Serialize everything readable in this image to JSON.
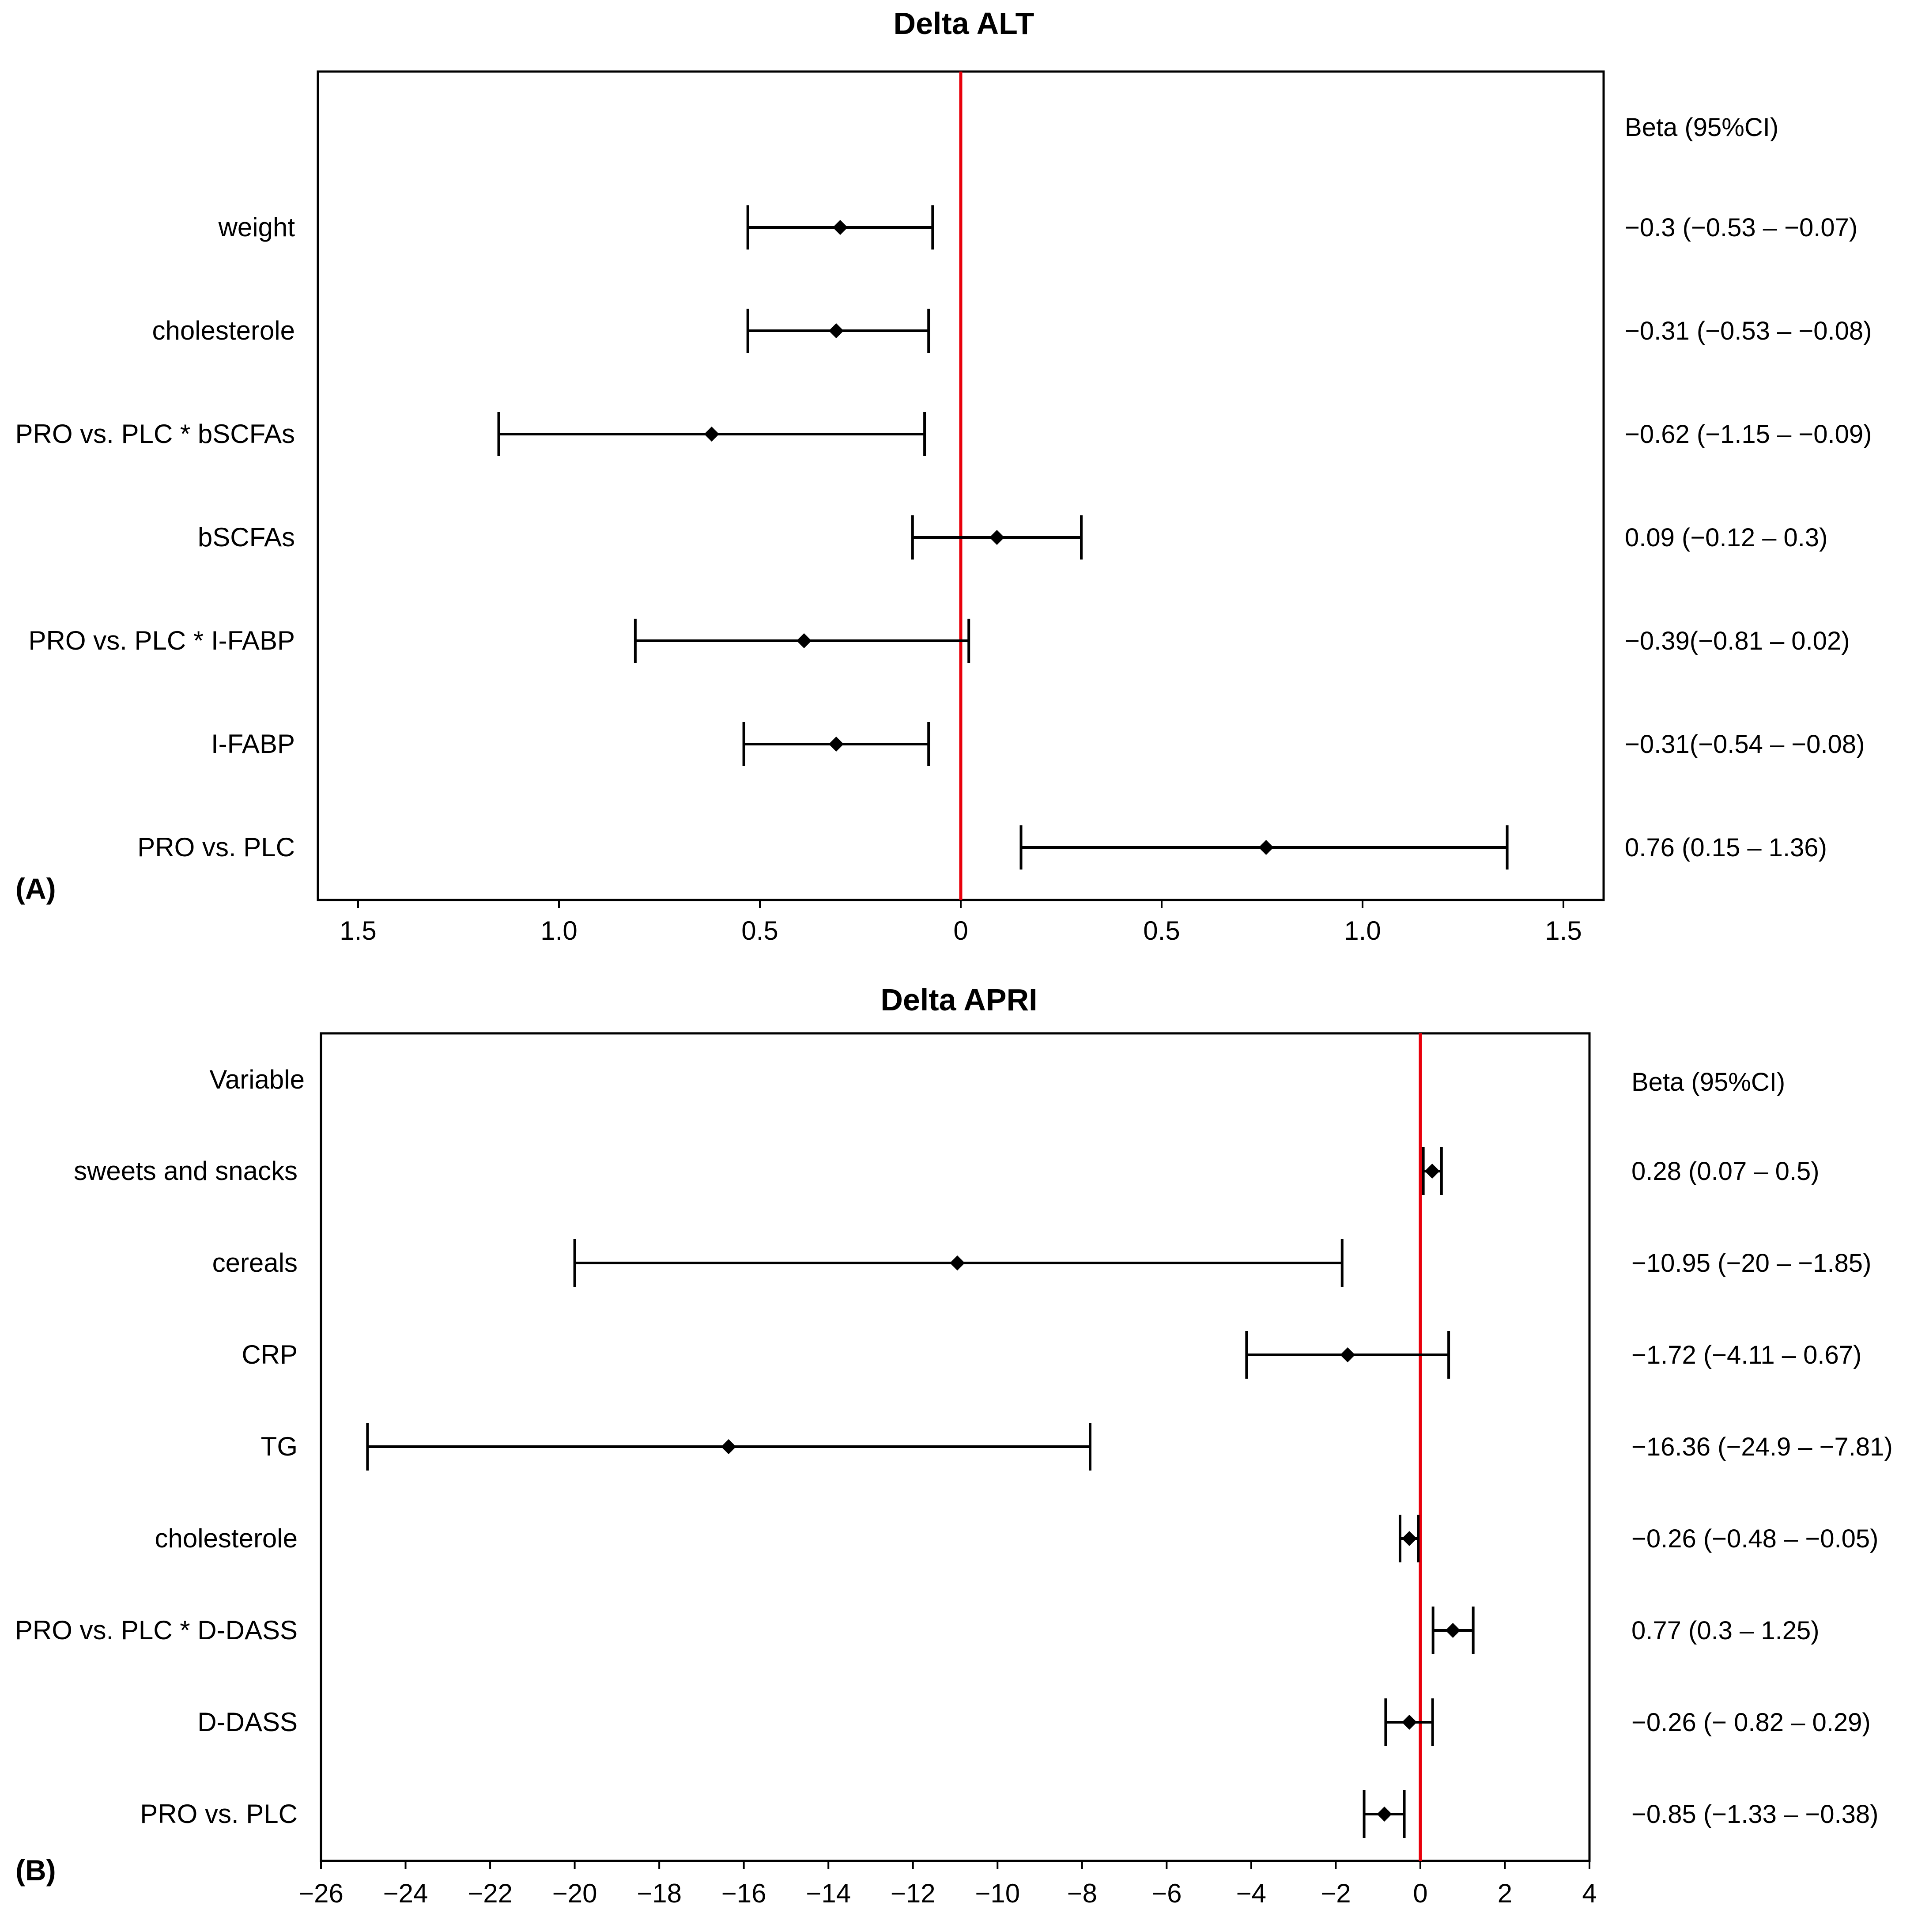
{
  "colors": {
    "ref_line": "#e8000b",
    "marks": "#000000",
    "background": "#ffffff"
  },
  "chart_data": [
    {
      "type": "forest",
      "panel_label": "(A)",
      "title": "Delta ALT",
      "header_label": "",
      "ci_header": "Beta (95%CI)",
      "x_range": [
        -1.6,
        1.6
      ],
      "reference_line": 0,
      "ticks": [
        -1.5,
        -1.0,
        -0.5,
        0,
        0.5,
        1.0,
        1.5
      ],
      "tick_labels": [
        "1.5",
        "1.0",
        "0.5",
        "0",
        "0.5",
        "1.0",
        "1.5"
      ],
      "rows": [
        {
          "label": "weight",
          "beta": -0.3,
          "low": -0.53,
          "high": -0.07,
          "ci_text": "−0.3  (−0.53 – −0.07)"
        },
        {
          "label": "cholesterole",
          "beta": -0.31,
          "low": -0.53,
          "high": -0.08,
          "ci_text": "−0.31 (−0.53 – −0.08)"
        },
        {
          "label": "PRO vs. PLC * bSCFAs",
          "beta": -0.62,
          "low": -1.15,
          "high": -0.09,
          "ci_text": "−0.62 (−1.15 – −0.09)"
        },
        {
          "label": "bSCFAs",
          "beta": 0.09,
          "low": -0.12,
          "high": 0.3,
          "ci_text": "0.09   (−0.12 – 0.3)"
        },
        {
          "label": "PRO vs. PLC * I-FABP",
          "beta": -0.39,
          "low": -0.81,
          "high": 0.02,
          "ci_text": "−0.39(−0.81 – 0.02)"
        },
        {
          "label": "I-FABP",
          "beta": -0.31,
          "low": -0.54,
          "high": -0.08,
          "ci_text": "−0.31(−0.54 – −0.08)"
        },
        {
          "label": "PRO vs. PLC",
          "beta": 0.76,
          "low": 0.15,
          "high": 1.36,
          "ci_text": "0.76   (0.15 – 1.36)"
        }
      ]
    },
    {
      "type": "forest",
      "panel_label": "(B)",
      "title": "Delta APRI",
      "header_label": "Variable",
      "ci_header": "Beta  (95%CI)",
      "x_range": [
        -26,
        4
      ],
      "reference_line": 0,
      "ticks": [
        -26,
        -24,
        -22,
        -20,
        -18,
        -16,
        -14,
        -12,
        -10,
        -8,
        -6,
        -4,
        -2,
        0,
        2,
        4
      ],
      "tick_labels": [
        "−26",
        "−24",
        "−22",
        "−20",
        "−18",
        "−16",
        "−14",
        "−12",
        "−10",
        "−8",
        "−6",
        "−4",
        "−2",
        "0",
        "2",
        "4"
      ],
      "rows": [
        {
          "label": "sweets and snacks",
          "beta": 0.28,
          "low": 0.07,
          "high": 0.5,
          "ci_text": "0.28  (0.07 – 0.5)"
        },
        {
          "label": "cereals",
          "beta": -10.95,
          "low": -20,
          "high": -1.85,
          "ci_text": "−10.95 (−20 – −1.85)"
        },
        {
          "label": "CRP",
          "beta": -1.72,
          "low": -4.11,
          "high": 0.67,
          "ci_text": "−1.72 (−4.11 – 0.67)"
        },
        {
          "label": "TG",
          "beta": -16.36,
          "low": -24.9,
          "high": -7.81,
          "ci_text": "−16.36 (−24.9 – −7.81)"
        },
        {
          "label": "cholesterole",
          "beta": -0.26,
          "low": -0.48,
          "high": -0.05,
          "ci_text": "−0.26 (−0.48 – −0.05)"
        },
        {
          "label": "PRO vs. PLC * D-DASS",
          "beta": 0.77,
          "low": 0.3,
          "high": 1.25,
          "ci_text": "0.77 (0.3 – 1.25)"
        },
        {
          "label": "D-DASS",
          "beta": -0.26,
          "low": -0.82,
          "high": 0.29,
          "ci_text": "−0.26 (− 0.82 – 0.29)"
        },
        {
          "label": "PRO vs. PLC",
          "beta": -0.85,
          "low": -1.33,
          "high": -0.38,
          "ci_text": "−0.85 (−1.33 – −0.38)"
        }
      ]
    }
  ]
}
